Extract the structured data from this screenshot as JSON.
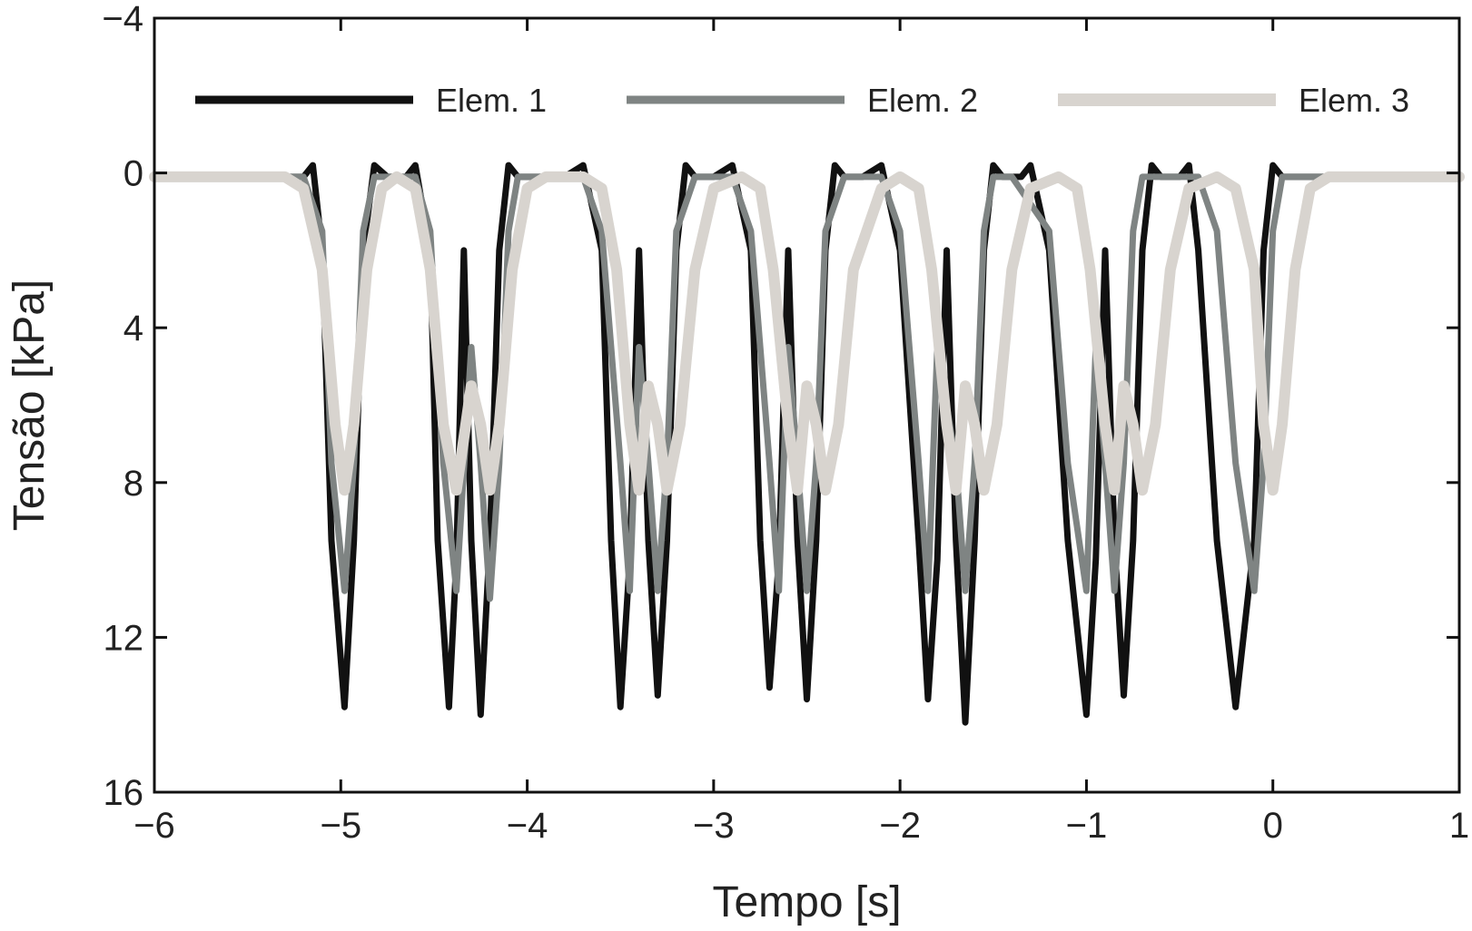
{
  "chart_data": {
    "type": "line",
    "title": "",
    "xlabel": "Tempo [s]",
    "ylabel": "Tensão [kPa]",
    "xlim": [
      -6,
      1
    ],
    "ylim": [
      16,
      -4
    ],
    "y_inverted": true,
    "grid": false,
    "legend_placement": "top",
    "x_ticks": [
      -6,
      -5,
      -4,
      -3,
      -2,
      -1,
      0,
      1
    ],
    "x_tick_labels": [
      "−6",
      "−5",
      "−4",
      "−3",
      "−2",
      "−1",
      "0",
      "1"
    ],
    "y_ticks": [
      -4,
      0,
      4,
      8,
      12,
      16
    ],
    "y_tick_labels": [
      "−4",
      "0",
      "4",
      "8",
      "12",
      "16"
    ],
    "series": [
      {
        "name": "Elem. 1",
        "color": "#111111",
        "x": [
          -6,
          -5.3,
          -5.2,
          -5.15,
          -5.1,
          -5.05,
          -4.98,
          -4.93,
          -4.88,
          -4.82,
          -4.75,
          -4.7,
          -4.65,
          -4.6,
          -4.52,
          -4.48,
          -4.42,
          -4.38,
          -4.34,
          -4.3,
          -4.25,
          -4.2,
          -4.15,
          -4.1,
          -4.05,
          -4.0,
          -3.9,
          -3.8,
          -3.7,
          -3.6,
          -3.55,
          -3.5,
          -3.45,
          -3.4,
          -3.35,
          -3.3,
          -3.25,
          -3.2,
          -3.15,
          -3.1,
          -3.05,
          -3.0,
          -2.9,
          -2.8,
          -2.75,
          -2.7,
          -2.65,
          -2.6,
          -2.55,
          -2.5,
          -2.45,
          -2.4,
          -2.35,
          -2.3,
          -2.25,
          -2.2,
          -2.1,
          -2.0,
          -1.9,
          -1.85,
          -1.8,
          -1.75,
          -1.7,
          -1.65,
          -1.6,
          -1.55,
          -1.5,
          -1.45,
          -1.4,
          -1.35,
          -1.3,
          -1.2,
          -1.1,
          -1.0,
          -0.95,
          -0.9,
          -0.85,
          -0.8,
          -0.75,
          -0.7,
          -0.65,
          -0.6,
          -0.55,
          -0.5,
          -0.45,
          -0.4,
          -0.3,
          -0.2,
          -0.1,
          -0.05,
          0.0,
          0.05,
          0.1,
          0.15,
          0.2,
          0.3,
          0.5,
          1.0
        ],
        "y": [
          0.1,
          0.1,
          0.1,
          -0.2,
          2.0,
          9.5,
          13.8,
          9.5,
          2.0,
          -0.2,
          0.1,
          0.1,
          0.1,
          -0.2,
          2.0,
          9.5,
          13.8,
          10.0,
          2.0,
          9.5,
          14.0,
          9.5,
          2.0,
          -0.2,
          0.1,
          0.1,
          0.1,
          0.1,
          -0.2,
          2.0,
          9.5,
          13.8,
          10.0,
          2.0,
          9.5,
          13.5,
          9.5,
          2.0,
          -0.2,
          0.1,
          0.1,
          0.1,
          -0.2,
          2.0,
          9.5,
          13.3,
          10.0,
          2.0,
          9.5,
          13.6,
          9.5,
          2.0,
          -0.2,
          0.1,
          0.1,
          0.1,
          -0.2,
          2.0,
          9.5,
          13.6,
          10.0,
          2.0,
          9.5,
          14.2,
          9.5,
          2.0,
          -0.2,
          0.1,
          0.1,
          0.1,
          -0.2,
          2.0,
          9.5,
          14.0,
          10.0,
          2.0,
          9.5,
          13.5,
          9.5,
          2.0,
          -0.2,
          0.1,
          0.1,
          0.1,
          -0.2,
          2.0,
          9.5,
          13.8,
          9.5,
          2.0,
          -0.2,
          0.1,
          0.1,
          0.1,
          0.1,
          0.1,
          0.1,
          0.1
        ]
      },
      {
        "name": "Elem. 2",
        "color": "#7f8483",
        "x": [
          -6,
          -5.3,
          -5.2,
          -5.1,
          -5.05,
          -4.98,
          -4.93,
          -4.88,
          -4.82,
          -4.75,
          -4.6,
          -4.52,
          -4.45,
          -4.38,
          -4.3,
          -4.25,
          -4.2,
          -4.15,
          -4.1,
          -4.05,
          -3.9,
          -3.7,
          -3.6,
          -3.5,
          -3.45,
          -3.4,
          -3.35,
          -3.3,
          -3.25,
          -3.2,
          -3.1,
          -2.9,
          -2.8,
          -2.7,
          -2.65,
          -2.6,
          -2.55,
          -2.5,
          -2.45,
          -2.4,
          -2.3,
          -2.1,
          -2.0,
          -1.9,
          -1.85,
          -1.8,
          -1.7,
          -1.65,
          -1.6,
          -1.55,
          -1.5,
          -1.4,
          -1.2,
          -1.1,
          -1.0,
          -0.95,
          -0.9,
          -0.85,
          -0.8,
          -0.75,
          -0.7,
          -0.6,
          -0.4,
          -0.3,
          -0.2,
          -0.1,
          -0.05,
          0.0,
          0.05,
          0.1,
          0.2,
          0.3,
          0.5,
          1.0
        ],
        "y": [
          0.1,
          0.1,
          0.1,
          1.5,
          7.5,
          10.8,
          7.5,
          1.5,
          0.1,
          0.1,
          0.1,
          1.5,
          7.5,
          10.8,
          4.5,
          7.5,
          11.0,
          7.5,
          1.5,
          0.1,
          0.1,
          0.1,
          1.5,
          7.5,
          10.8,
          4.5,
          7.5,
          10.8,
          7.5,
          1.5,
          0.1,
          0.1,
          1.5,
          7.5,
          10.8,
          4.5,
          7.5,
          10.8,
          7.5,
          1.5,
          0.1,
          0.1,
          1.5,
          7.5,
          10.8,
          4.5,
          7.5,
          10.8,
          7.5,
          1.5,
          0.1,
          0.1,
          1.5,
          7.5,
          10.8,
          4.5,
          7.5,
          10.8,
          7.5,
          1.5,
          0.1,
          0.1,
          0.1,
          1.5,
          7.5,
          10.8,
          7.5,
          1.5,
          0.1,
          0.1,
          0.1,
          0.1,
          0.1,
          0.1
        ]
      },
      {
        "name": "Elem. 3",
        "color": "#d8d4cf",
        "x": [
          -6,
          -5.3,
          -5.2,
          -5.1,
          -5.03,
          -4.98,
          -4.93,
          -4.86,
          -4.78,
          -4.7,
          -4.6,
          -4.52,
          -4.45,
          -4.38,
          -4.3,
          -4.25,
          -4.2,
          -4.15,
          -4.08,
          -4.0,
          -3.9,
          -3.7,
          -3.6,
          -3.52,
          -3.45,
          -3.4,
          -3.35,
          -3.3,
          -3.25,
          -3.18,
          -3.1,
          -3.0,
          -2.85,
          -2.75,
          -2.68,
          -2.6,
          -2.55,
          -2.5,
          -2.45,
          -2.4,
          -2.33,
          -2.25,
          -2.1,
          -2.0,
          -1.9,
          -1.83,
          -1.75,
          -1.7,
          -1.65,
          -1.6,
          -1.55,
          -1.48,
          -1.4,
          -1.3,
          -1.15,
          -1.05,
          -0.98,
          -0.9,
          -0.85,
          -0.8,
          -0.75,
          -0.7,
          -0.63,
          -0.55,
          -0.45,
          -0.3,
          -0.2,
          -0.1,
          -0.05,
          0.0,
          0.05,
          0.12,
          0.2,
          0.3,
          0.5,
          1.0
        ],
        "y": [
          0.1,
          0.1,
          0.4,
          2.5,
          6.5,
          8.2,
          6.5,
          2.5,
          0.4,
          0.1,
          0.4,
          2.5,
          6.5,
          8.2,
          5.5,
          6.5,
          8.2,
          6.5,
          2.5,
          0.4,
          0.1,
          0.1,
          0.4,
          2.5,
          6.5,
          8.2,
          5.5,
          6.5,
          8.2,
          6.5,
          2.5,
          0.4,
          0.1,
          0.4,
          2.5,
          6.5,
          8.2,
          5.5,
          6.5,
          8.2,
          6.5,
          2.5,
          0.4,
          0.1,
          0.4,
          2.5,
          6.5,
          8.2,
          5.5,
          6.5,
          8.2,
          6.5,
          2.5,
          0.4,
          0.1,
          0.4,
          2.5,
          6.5,
          8.2,
          5.5,
          6.5,
          8.2,
          6.5,
          2.5,
          0.4,
          0.1,
          0.4,
          2.5,
          6.5,
          8.2,
          6.5,
          2.5,
          0.4,
          0.1,
          0.1,
          0.1
        ]
      }
    ]
  }
}
